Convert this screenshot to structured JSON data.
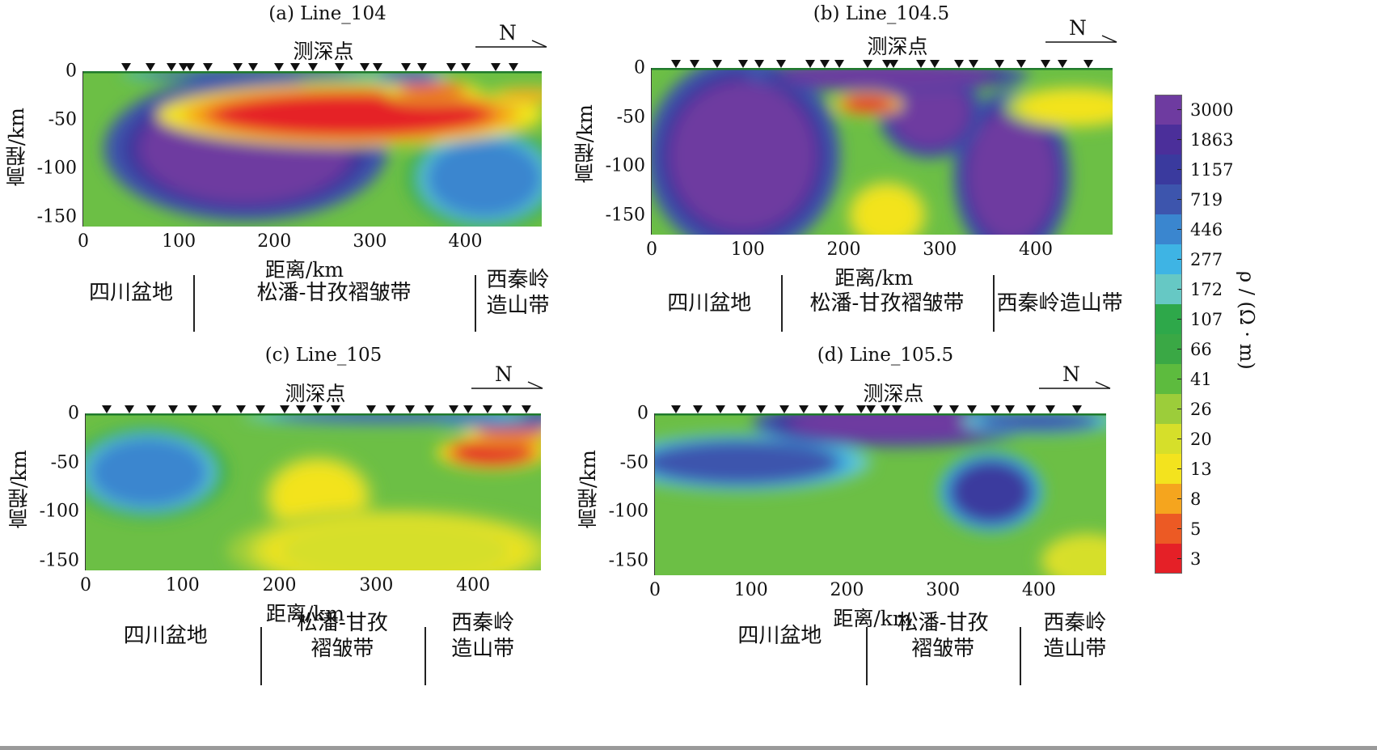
{
  "chart_data": [
    {
      "type": "heatmap",
      "title": "(a)  Line_104",
      "station_label": "测深点",
      "north": "N",
      "xlabel": "距离/km",
      "ylabel": "高程/km",
      "x_ticks": [
        "0",
        "100",
        "200",
        "300",
        "400"
      ],
      "y_ticks": [
        "0",
        "-50",
        "-100",
        "-150"
      ],
      "xlim": [
        0,
        480
      ],
      "ylim": [
        -160,
        0
      ],
      "stations_km": [
        45,
        70,
        92,
        105,
        112,
        130,
        162,
        178,
        205,
        222,
        240,
        268,
        295,
        308,
        338,
        355,
        385,
        400,
        432,
        450
      ],
      "regions": [
        {
          "label": "四川盆地",
          "from_km": -20,
          "to_km": 115
        },
        {
          "label": "松潘-甘孜褶皱带",
          "from_km": 115,
          "to_km": 410
        },
        {
          "label": "西秦岭\n造山带",
          "from_km": 410,
          "to_km": 500
        }
      ],
      "anomalies": [
        {
          "x": 170,
          "y": -80,
          "rx": 110,
          "ry": 55,
          "rho": 3000
        },
        {
          "x": 420,
          "y": -110,
          "rx": 60,
          "ry": 40,
          "rho": 446
        },
        {
          "x": 280,
          "y": -45,
          "rx": 140,
          "ry": 22,
          "rho": 3
        },
        {
          "x": 365,
          "y": -20,
          "rx": 35,
          "ry": 8,
          "rho": 5
        },
        {
          "x": 465,
          "y": -25,
          "rx": 30,
          "ry": 6,
          "rho": 8
        },
        {
          "x": 175,
          "y": -3,
          "rx": 100,
          "ry": 5,
          "rho": 1157
        },
        {
          "x": 340,
          "y": -5,
          "rx": 30,
          "ry": 6,
          "rho": 719
        }
      ]
    },
    {
      "type": "heatmap",
      "title": "(b)  Line_104.5",
      "station_label": "测深点",
      "north": "N",
      "xlabel": "距离/km",
      "ylabel": "高程/km",
      "x_ticks": [
        "0",
        "100",
        "200",
        "300",
        "400"
      ],
      "y_ticks": [
        "0",
        "-50",
        "-100",
        "-150"
      ],
      "xlim": [
        0,
        480
      ],
      "ylim": [
        -170,
        0
      ],
      "stations_km": [
        25,
        45,
        68,
        95,
        112,
        135,
        165,
        180,
        195,
        225,
        245,
        252,
        280,
        295,
        320,
        335,
        362,
        385,
        410,
        428,
        455
      ],
      "regions": [
        {
          "label": "四川盆地",
          "from_km": -20,
          "to_km": 135
        },
        {
          "label": "松潘-甘孜褶皱带",
          "from_km": 135,
          "to_km": 355
        },
        {
          "label": "西秦岭造山带",
          "from_km": 355,
          "to_km": 495
        }
      ],
      "anomalies": [
        {
          "x": 95,
          "y": -90,
          "rx": 75,
          "ry": 75,
          "rho": 3000
        },
        {
          "x": 375,
          "y": -110,
          "rx": 45,
          "ry": 65,
          "rho": 3000
        },
        {
          "x": 290,
          "y": -45,
          "rx": 40,
          "ry": 35,
          "rho": 3000
        },
        {
          "x": 245,
          "y": -8,
          "rx": 110,
          "ry": 12,
          "rho": 3000
        },
        {
          "x": 225,
          "y": -37,
          "rx": 25,
          "ry": 8,
          "rho": 3
        },
        {
          "x": 245,
          "y": -150,
          "rx": 30,
          "ry": 25,
          "rho": 13
        },
        {
          "x": 440,
          "y": -40,
          "rx": 50,
          "ry": 15,
          "rho": 13
        }
      ]
    },
    {
      "type": "heatmap",
      "title": "(c)  Line_105",
      "station_label": "测深点",
      "north": "N",
      "xlabel": "距离/km",
      "ylabel": "高程/km",
      "x_ticks": [
        "0",
        "100",
        "200",
        "300",
        "400"
      ],
      "y_ticks": [
        "0",
        "-50",
        "-100",
        "-150"
      ],
      "xlim": [
        0,
        470
      ],
      "ylim": [
        -160,
        0
      ],
      "stations_km": [
        22,
        45,
        68,
        90,
        110,
        135,
        160,
        180,
        205,
        222,
        240,
        258,
        295,
        315,
        335,
        355,
        380,
        395,
        415,
        435,
        455
      ],
      "regions": [
        {
          "label": "四川盆地",
          "from_km": -20,
          "to_km": 180
        },
        {
          "label": "松潘-甘孜\n褶皱带",
          "from_km": 180,
          "to_km": 350
        },
        {
          "label": "西秦岭\n造山带",
          "from_km": 350,
          "to_km": 470
        }
      ],
      "anomalies": [
        {
          "x": 65,
          "y": -60,
          "rx": 60,
          "ry": 35,
          "rho": 446
        },
        {
          "x": 420,
          "y": -40,
          "rx": 40,
          "ry": 12,
          "rho": 3
        },
        {
          "x": 440,
          "y": -20,
          "rx": 35,
          "ry": 8,
          "rho": 5
        },
        {
          "x": 430,
          "y": -5,
          "rx": 60,
          "ry": 8,
          "rho": 1157
        },
        {
          "x": 310,
          "y": -3,
          "rx": 110,
          "ry": 6,
          "rho": 719
        },
        {
          "x": 240,
          "y": -85,
          "rx": 40,
          "ry": 30,
          "rho": 13
        },
        {
          "x": 320,
          "y": -140,
          "rx": 120,
          "ry": 30,
          "rho": 20
        }
      ]
    },
    {
      "type": "heatmap",
      "title": "(d)  Line_105.5",
      "station_label": "测深点",
      "north": "N",
      "xlabel": "距离/km",
      "ylabel": "高程/km",
      "x_ticks": [
        "0",
        "100",
        "200",
        "300",
        "400"
      ],
      "y_ticks": [
        "0",
        "-50",
        "-100",
        "-150"
      ],
      "xlim": [
        0,
        470
      ],
      "ylim": [
        -165,
        0
      ],
      "stations_km": [
        22,
        45,
        68,
        90,
        110,
        135,
        155,
        175,
        192,
        215,
        225,
        240,
        252,
        295,
        312,
        330,
        355,
        370,
        392,
        412,
        440
      ],
      "regions": [
        {
          "label": "四川盆地",
          "from_km": 40,
          "to_km": 220
        },
        {
          "label": "松潘-甘孜\n褶皱带",
          "from_km": 220,
          "to_km": 380
        },
        {
          "label": "西秦岭\n造山带",
          "from_km": 380,
          "to_km": 495
        }
      ],
      "anomalies": [
        {
          "x": 90,
          "y": -50,
          "rx": 100,
          "ry": 22,
          "rho": 719
        },
        {
          "x": 250,
          "y": -10,
          "rx": 110,
          "ry": 18,
          "rho": 3000
        },
        {
          "x": 350,
          "y": -80,
          "rx": 40,
          "ry": 30,
          "rho": 1157
        },
        {
          "x": 400,
          "y": -8,
          "rx": 60,
          "ry": 10,
          "rho": 719
        },
        {
          "x": 450,
          "y": -150,
          "rx": 35,
          "ry": 20,
          "rho": 20
        }
      ]
    }
  ],
  "colorbar": {
    "label": "ρ / (Ω · m)",
    "ticks": [
      "3000",
      "1863",
      "1157",
      "719",
      "446",
      "277",
      "172",
      "107",
      "66",
      "41",
      "26",
      "20",
      "13",
      "8",
      "5",
      "3"
    ],
    "colors": [
      "#6e3ba0",
      "#4b2f9a",
      "#3a3a9e",
      "#3d55ad",
      "#3a86cf",
      "#3eb4e4",
      "#66c8c4",
      "#2ea84a",
      "#3aa845",
      "#5dbb3e",
      "#9ccd3a",
      "#d6df2a",
      "#f3e31e",
      "#f5a51e",
      "#ec5a24",
      "#e52027"
    ]
  },
  "dividers_labels": []
}
